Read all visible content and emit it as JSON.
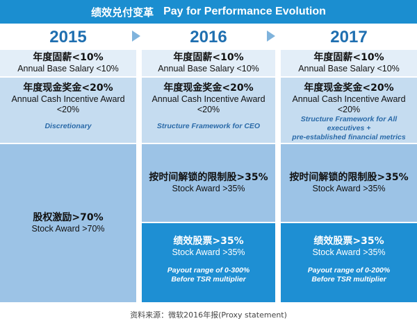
{
  "title": {
    "cn": "绩效兑付变革",
    "en": "Pay for Performance Evolution"
  },
  "columns": [
    {
      "year": "2015",
      "base_cn": "年度固薪<10%",
      "base_en": "Annual Base Salary <10%",
      "cash_cn": "年度现金奖金<20%",
      "cash_en_1": "Annual Cash Incentive Award",
      "cash_en_2": "<20%",
      "cash_note": "Discretionary",
      "stock_cn": "股权激励>70%",
      "stock_en": "Stock Award >70%"
    },
    {
      "year": "2016",
      "base_cn": "年度固薪<10%",
      "base_en": "Annual Base Salary <10%",
      "cash_cn": "年度现金奖金<20%",
      "cash_en_1": "Annual Cash Incentive Award",
      "cash_en_2": "<20%",
      "cash_note": "Structure Framework for CEO",
      "rsu_cn": "按时间解锁的限制股>35%",
      "rsu_en": "Stock Award >35%",
      "psu_cn": "绩效股票>35%",
      "psu_en": "Stock Award >35%",
      "psu_note_1": "Payout range of 0-300%",
      "psu_note_2": "Before TSR multiplier"
    },
    {
      "year": "2017",
      "base_cn": "年度固薪<10%",
      "base_en": "Annual Base Salary <10%",
      "cash_cn": "年度现金奖金<20%",
      "cash_en_1": "Annual Cash Incentive Award",
      "cash_en_2": "<20%",
      "cash_note_1": "Structure Framework for All",
      "cash_note_2": "executives +",
      "cash_note_3": "pre-established financial metrics",
      "rsu_cn": "按时间解锁的限制股>35%",
      "rsu_en": "Stock Award >35%",
      "psu_cn": "绩效股票>35%",
      "psu_en": "Stock Award >35%",
      "psu_note_1": "Payout range of 0-200%",
      "psu_note_2": "Before TSR multiplier"
    }
  ],
  "footer": "资料来源：微软2016年报(Proxy  statement)",
  "colors": {
    "title_bg": "#1b8ed0",
    "year_text": "#1f6fb0",
    "base_bg": "#e3eef8",
    "cash_bg": "#c5dcf0",
    "stock_bg": "#9cc3e6",
    "psu_bg": "#1e8fd3"
  }
}
